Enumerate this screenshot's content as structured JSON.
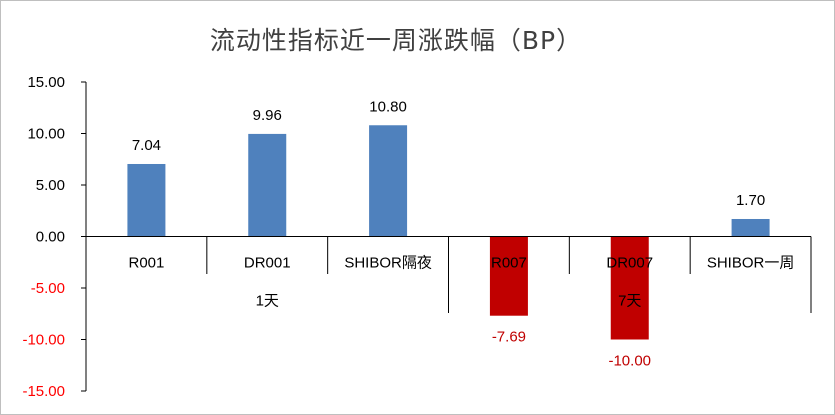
{
  "chart_data": {
    "type": "bar",
    "title": "流动性指标近一周涨跌幅（BP）",
    "categories": [
      "R001",
      "DR001",
      "SHIBOR隔夜",
      "R007",
      "DR007",
      "SHIBOR一周"
    ],
    "values": [
      7.04,
      9.96,
      10.8,
      -7.69,
      -10.0,
      1.7
    ],
    "value_labels": [
      "7.04",
      "9.96",
      "10.80",
      "-7.69",
      "-10.00",
      "1.70"
    ],
    "groups": [
      {
        "label": "1天",
        "from": 0,
        "to": 2
      },
      {
        "label": "7天",
        "from": 3,
        "to": 5
      }
    ],
    "ylim": [
      -15,
      15
    ],
    "yticks": [
      "15.00",
      "10.00",
      "5.00",
      "0.00",
      "-5.00",
      "-10.00",
      "-15.00"
    ],
    "ytick_values": [
      15,
      10,
      5,
      0,
      -5,
      -10,
      -15
    ],
    "colors": {
      "positive": "#4f81bd",
      "negative": "#c00000",
      "label_positive": "#000000",
      "label_negative": "#c00000",
      "axis": "#000000",
      "tick_negative_color": "#ff0000"
    },
    "grid": false,
    "legend": "none"
  }
}
